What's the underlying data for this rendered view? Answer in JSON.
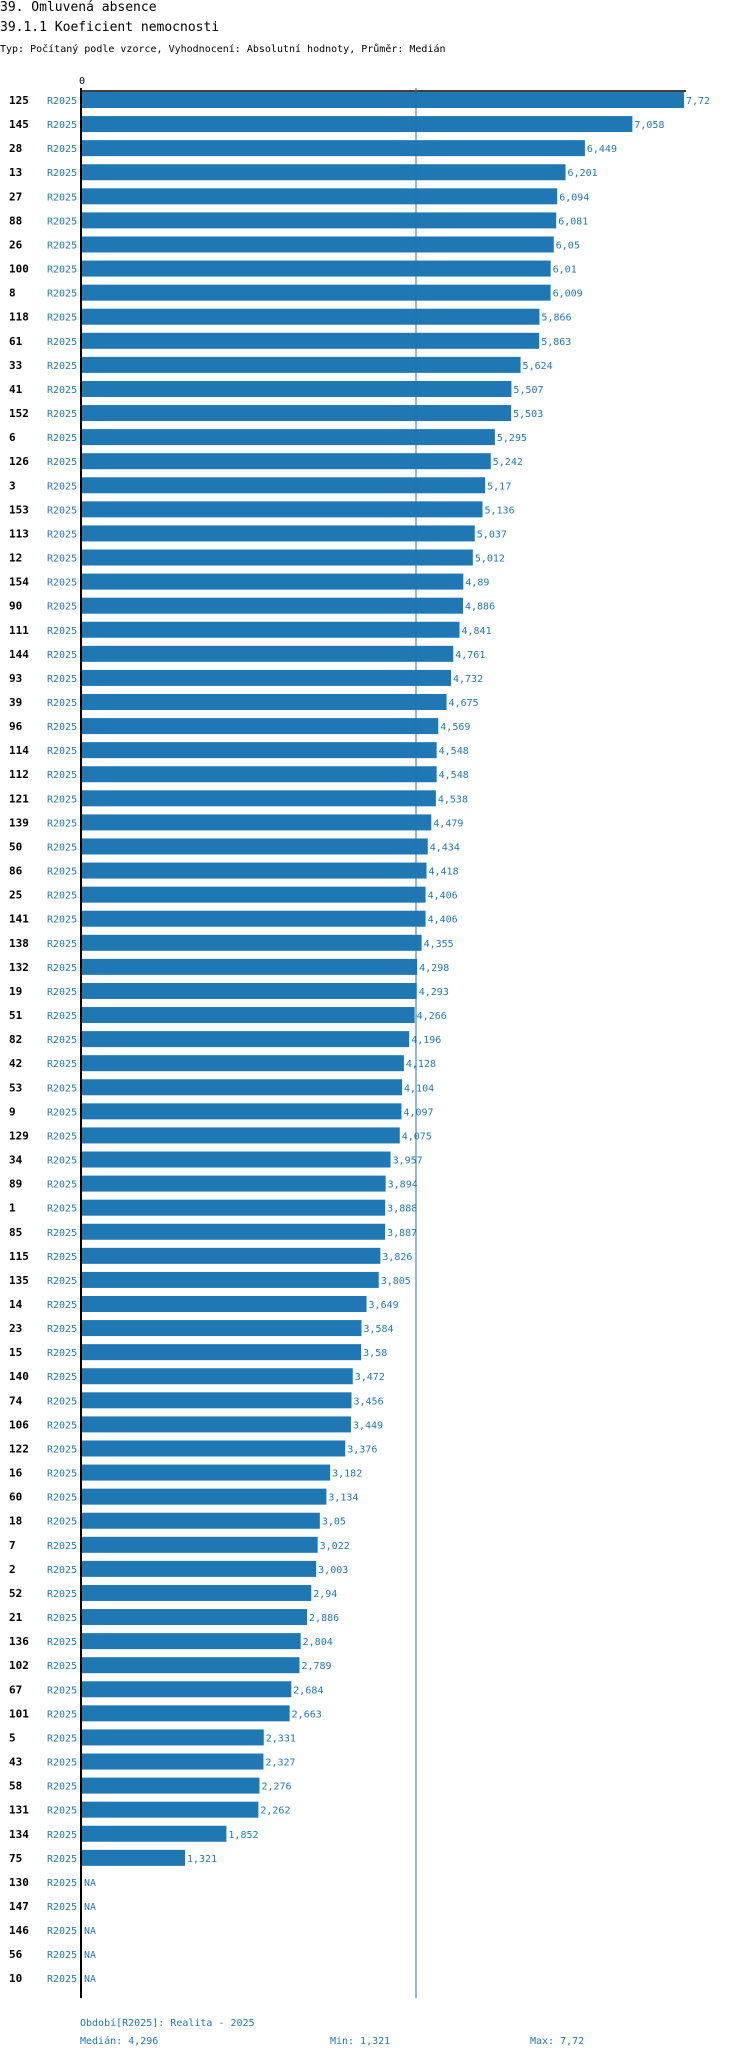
{
  "header": {
    "title": "39. Omluvená absence",
    "subtitle": "39.1.1 Koeficient nemocnosti",
    "type_line": "Typ: Počítaný podle vzorce, Vyhodnocení: Absolutní hodnoty, Průměr: Medián"
  },
  "chart_data": {
    "type": "bar",
    "orientation": "horizontal",
    "axis_zero_label": "0",
    "xlim": [
      0,
      7.72
    ],
    "median_line": 4.296,
    "categories": [
      "125",
      "145",
      "28",
      "13",
      "27",
      "88",
      "26",
      "100",
      "8",
      "118",
      "61",
      "33",
      "41",
      "152",
      "6",
      "126",
      "3",
      "153",
      "113",
      "12",
      "154",
      "90",
      "111",
      "144",
      "93",
      "39",
      "96",
      "114",
      "112",
      "121",
      "139",
      "50",
      "86",
      "25",
      "141",
      "138",
      "132",
      "19",
      "51",
      "82",
      "42",
      "53",
      "9",
      "129",
      "34",
      "89",
      "1",
      "85",
      "115",
      "135",
      "14",
      "23",
      "15",
      "140",
      "74",
      "106",
      "122",
      "16",
      "60",
      "18",
      "7",
      "2",
      "52",
      "21",
      "136",
      "102",
      "67",
      "101",
      "5",
      "43",
      "58",
      "131",
      "134",
      "75",
      "130",
      "147",
      "146",
      "56",
      "10"
    ],
    "period_labels": [
      "R2025",
      "R2025",
      "R2025",
      "R2025",
      "R2025",
      "R2025",
      "R2025",
      "R2025",
      "R2025",
      "R2025",
      "R2025",
      "R2025",
      "R2025",
      "R2025",
      "R2025",
      "R2025",
      "R2025",
      "R2025",
      "R2025",
      "R2025",
      "R2025",
      "R2025",
      "R2025",
      "R2025",
      "R2025",
      "R2025",
      "R2025",
      "R2025",
      "R2025",
      "R2025",
      "R2025",
      "R2025",
      "R2025",
      "R2025",
      "R2025",
      "R2025",
      "R2025",
      "R2025",
      "R2025",
      "R2025",
      "R2025",
      "R2025",
      "R2025",
      "R2025",
      "R2025",
      "R2025",
      "R2025",
      "R2025",
      "R2025",
      "R2025",
      "R2025",
      "R2025",
      "R2025",
      "R2025",
      "R2025",
      "R2025",
      "R2025",
      "R2025",
      "R2025",
      "R2025",
      "R2025",
      "R2025",
      "R2025",
      "R2025",
      "R2025",
      "R2025",
      "R2025",
      "R2025",
      "R2025",
      "R2025",
      "R2025",
      "R2025",
      "R2025",
      "R2025",
      "R2025",
      "R2025",
      "R2025",
      "R2025",
      "R2025"
    ],
    "values": [
      7.72,
      7.058,
      6.449,
      6.201,
      6.094,
      6.081,
      6.05,
      6.01,
      6.009,
      5.866,
      5.863,
      5.624,
      5.507,
      5.503,
      5.295,
      5.242,
      5.17,
      5.136,
      5.037,
      5.012,
      4.89,
      4.886,
      4.841,
      4.761,
      4.732,
      4.675,
      4.569,
      4.548,
      4.548,
      4.538,
      4.479,
      4.434,
      4.418,
      4.406,
      4.406,
      4.355,
      4.298,
      4.293,
      4.266,
      4.196,
      4.128,
      4.104,
      4.097,
      4.075,
      3.957,
      3.894,
      3.888,
      3.887,
      3.826,
      3.805,
      3.649,
      3.584,
      3.58,
      3.472,
      3.456,
      3.449,
      3.376,
      3.182,
      3.134,
      3.05,
      3.022,
      3.003,
      2.94,
      2.886,
      2.804,
      2.789,
      2.684,
      2.663,
      2.331,
      2.327,
      2.276,
      2.262,
      1.852,
      1.321,
      null,
      null,
      null,
      null,
      null
    ],
    "value_labels": [
      "7,72",
      "7,058",
      "6,449",
      "6,201",
      "6,094",
      "6,081",
      "6,05",
      "6,01",
      "6,009",
      "5,866",
      "5,863",
      "5,624",
      "5,507",
      "5,503",
      "5,295",
      "5,242",
      "5,17",
      "5,136",
      "5,037",
      "5,012",
      "4,89",
      "4,886",
      "4,841",
      "4,761",
      "4,732",
      "4,675",
      "4,569",
      "4,548",
      "4,548",
      "4,538",
      "4,479",
      "4,434",
      "4,418",
      "4,406",
      "4,406",
      "4,355",
      "4,298",
      "4,293",
      "4,266",
      "4,196",
      "4,128",
      "4,104",
      "4,097",
      "4,075",
      "3,957",
      "3,894",
      "3,888",
      "3,887",
      "3,826",
      "3,805",
      "3,649",
      "3,584",
      "3,58",
      "3,472",
      "3,456",
      "3,449",
      "3,376",
      "3,182",
      "3,134",
      "3,05",
      "3,022",
      "3,003",
      "2,94",
      "2,886",
      "2,804",
      "2,789",
      "2,684",
      "2,663",
      "2,331",
      "2,327",
      "2,276",
      "2,262",
      "1,852",
      "1,321",
      "NA",
      "NA",
      "NA",
      "NA",
      "NA"
    ]
  },
  "footer": {
    "period": "Období[R2025]: Realita - 2025",
    "median": "Medián: 4,296",
    "min": "Min: 1,321",
    "max": "Max: 7,72"
  },
  "colors": {
    "bar": "#1f77b4",
    "text_blue": "#1f77b4"
  }
}
